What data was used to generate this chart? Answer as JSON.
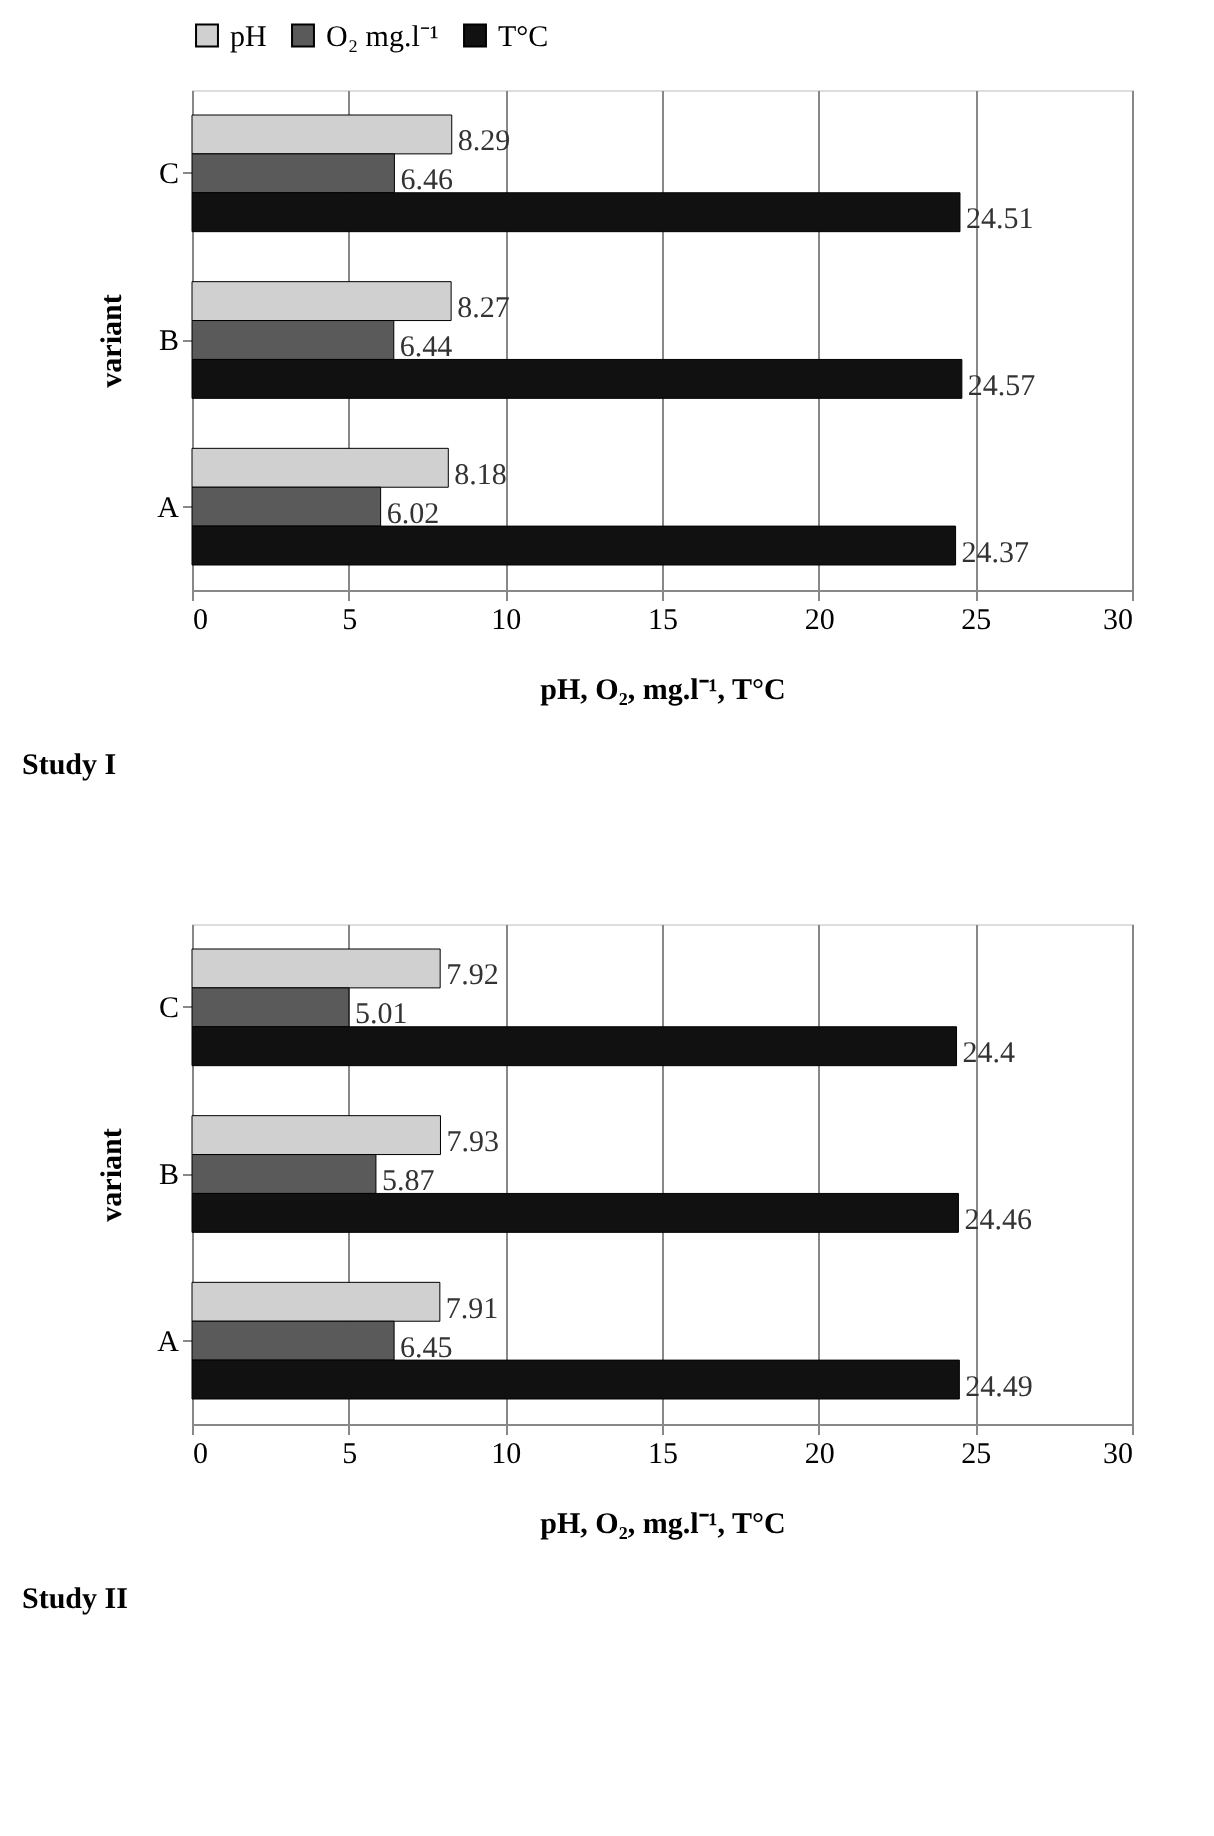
{
  "chart_data": [
    {
      "type": "bar",
      "orientation": "horizontal",
      "categories": [
        "C",
        "B",
        "A"
      ],
      "series": [
        {
          "name": "pH",
          "color": "#d0d0d0",
          "values": [
            8.29,
            8.27,
            8.18
          ]
        },
        {
          "name": "O₂ mg.l⁻¹",
          "color": "#5a5a5a",
          "values": [
            6.46,
            6.44,
            6.02
          ]
        },
        {
          "name": "T°C",
          "color": "#111111",
          "values": [
            24.51,
            24.57,
            24.37
          ]
        }
      ],
      "xlim": [
        0,
        30
      ],
      "xticks": [
        0,
        5,
        10,
        15,
        20,
        25,
        30
      ],
      "grid": "x",
      "legend": "top",
      "data_labels": true,
      "xlabel": "pH, O₂, mg.l⁻¹, T°C",
      "ylabel": "variant",
      "annotations": [
        "Study I"
      ]
    },
    {
      "type": "bar",
      "orientation": "horizontal",
      "categories": [
        "C",
        "B",
        "A"
      ],
      "series": [
        {
          "name": "pH",
          "color": "#d0d0d0",
          "values": [
            7.92,
            7.93,
            7.91
          ]
        },
        {
          "name": "O₂ mg.l⁻¹",
          "color": "#5a5a5a",
          "values": [
            5.01,
            5.87,
            6.45
          ]
        },
        {
          "name": "T°C",
          "color": "#111111",
          "values": [
            24.4,
            24.46,
            24.49
          ]
        }
      ],
      "xlim": [
        0,
        30
      ],
      "xticks": [
        0,
        5,
        10,
        15,
        20,
        25,
        30
      ],
      "grid": "x",
      "legend": "top",
      "data_labels": true,
      "xlabel": "pH, O₂, mg.l⁻¹, T°C",
      "ylabel": "variant",
      "annotations": [
        "Study II"
      ]
    }
  ]
}
